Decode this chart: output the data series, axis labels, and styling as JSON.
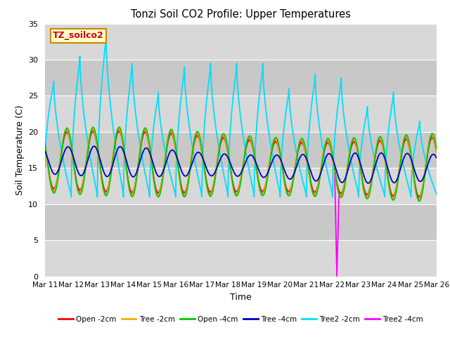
{
  "title": "Tonzi Soil CO2 Profile: Upper Temperatures",
  "xlabel": "Time",
  "ylabel": "Soil Temperature (C)",
  "ylim": [
    0,
    35
  ],
  "yticks": [
    0,
    5,
    10,
    15,
    20,
    25,
    30,
    35
  ],
  "bg_color": "#dcdcdc",
  "band_colors": [
    "#dcdcdc",
    "#c8c8c8"
  ],
  "label_box_text": "TZ_soilco2",
  "label_box_facecolor": "#ffffcc",
  "label_box_edgecolor": "#cc8800",
  "label_text_color": "#cc0000",
  "series": {
    "Open_2cm": {
      "color": "#ff0000",
      "label": "Open -2cm"
    },
    "Tree_2cm": {
      "color": "#ffaa00",
      "label": "Tree -2cm"
    },
    "Open_4cm": {
      "color": "#00cc00",
      "label": "Open -4cm"
    },
    "Tree_4cm": {
      "color": "#0000cc",
      "label": "Tree -4cm"
    },
    "Tree2_2cm": {
      "color": "#00ddff",
      "label": "Tree2 -2cm"
    },
    "Tree2_4cm": {
      "color": "#ff00ff",
      "label": "Tree2 -4cm"
    }
  },
  "xtick_labels": [
    "Mar 11",
    "Mar 12",
    "Mar 13",
    "Mar 14",
    "Mar 15",
    "Mar 16",
    "Mar 17",
    "Mar 18",
    "Mar 19",
    "Mar 20",
    "Mar 21",
    "Mar 22",
    "Mar 23",
    "Mar 24",
    "Mar 25",
    "Mar 26"
  ],
  "xtick_positions": [
    0,
    1,
    2,
    3,
    4,
    5,
    6,
    7,
    8,
    9,
    10,
    11,
    12,
    13,
    14,
    15
  ]
}
